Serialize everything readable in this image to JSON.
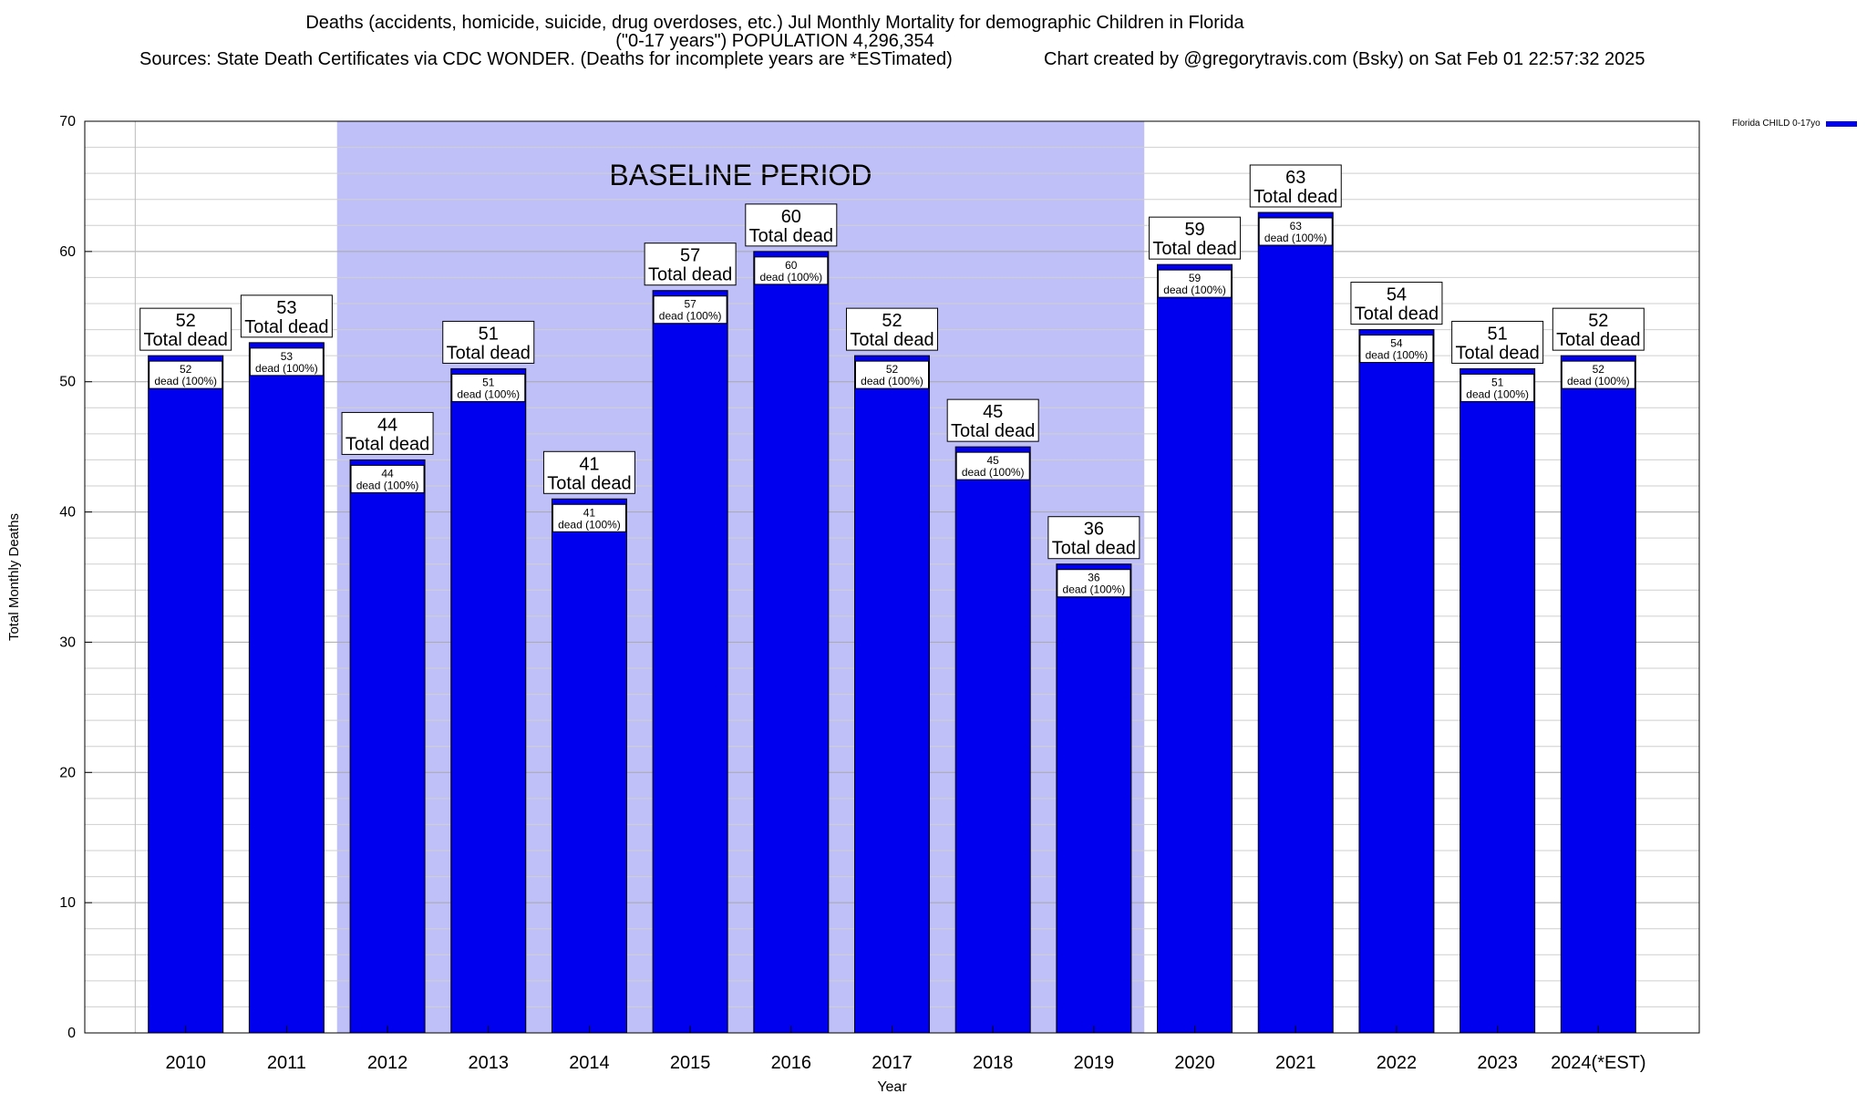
{
  "chart_data": {
    "type": "bar",
    "title_lines": [
      "Deaths (accidents, homicide, suicide, drug overdoses, etc.) Jul Monthly Mortality for demographic Children in Florida",
      "(\"0-17 years\") POPULATION 4,296,354"
    ],
    "sources": "Sources: State Death Certificates via CDC WONDER. (Deaths for incomplete years are *ESTimated)",
    "credit": "Chart created by @gregorytravis.com (Bsky) on Sat Feb 01 22:57:32 2025",
    "xlabel": "Year",
    "ylabel": "Total Monthly Deaths",
    "ylim": [
      0,
      70
    ],
    "yticks": [
      0,
      10,
      20,
      30,
      40,
      50,
      60,
      70
    ],
    "grid": true,
    "categories": [
      "2010",
      "2011",
      "2012",
      "2013",
      "2014",
      "2015",
      "2016",
      "2017",
      "2018",
      "2019",
      "2020",
      "2021",
      "2022",
      "2023",
      "2024(*EST)"
    ],
    "series": [
      {
        "name": "Florida CHILD 0-17yo",
        "color": "#0000ee",
        "values": [
          52,
          53,
          44,
          51,
          41,
          57,
          60,
          52,
          45,
          36,
          59,
          63,
          54,
          51,
          52
        ]
      }
    ],
    "top_label_suffix": "Total dead",
    "inner_label_suffix": "dead (100%)",
    "baseline": {
      "label": "BASELINE PERIOD",
      "from": "2012",
      "to": "2019",
      "color": "#c0c0f8"
    },
    "legend_position": "top-right"
  }
}
